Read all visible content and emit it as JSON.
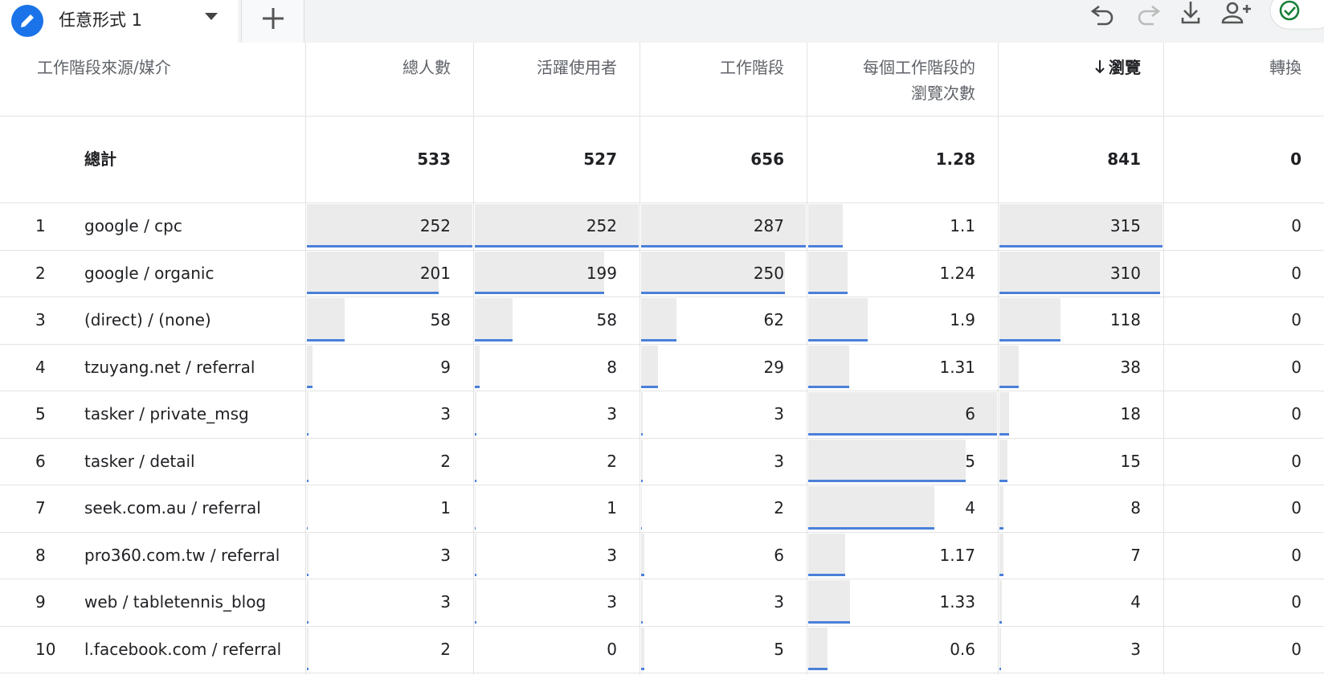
{
  "tab": {
    "title": "任意形式 1"
  },
  "table": {
    "columns": [
      "工作階段來源/媒介",
      "總人數",
      "活躍使用者",
      "工作階段",
      "每個工作階段的瀏覽次數",
      "瀏覽",
      "轉換"
    ],
    "total": {
      "label": "總計",
      "values": [
        533,
        527,
        656,
        1.28,
        841,
        0
      ]
    },
    "rows": [
      {
        "rank": 1,
        "source": "google / cpc",
        "values": [
          252,
          252,
          287,
          1.1,
          315,
          0
        ]
      },
      {
        "rank": 2,
        "source": "google / organic",
        "values": [
          201,
          199,
          250,
          1.24,
          310,
          0
        ]
      },
      {
        "rank": 3,
        "source": "(direct) / (none)",
        "values": [
          58,
          58,
          62,
          1.9,
          118,
          0
        ]
      },
      {
        "rank": 4,
        "source": "tzuyang.net / referral",
        "values": [
          9,
          8,
          29,
          1.31,
          38,
          0
        ]
      },
      {
        "rank": 5,
        "source": "tasker / private_msg",
        "values": [
          3,
          3,
          3,
          6,
          18,
          0
        ]
      },
      {
        "rank": 6,
        "source": "tasker / detail",
        "values": [
          2,
          2,
          3,
          5,
          15,
          0
        ]
      },
      {
        "rank": 7,
        "source": "seek.com.au / referral",
        "values": [
          1,
          1,
          2,
          4,
          8,
          0
        ]
      },
      {
        "rank": 8,
        "source": "pro360.com.tw / referral",
        "values": [
          3,
          3,
          6,
          1.17,
          7,
          0
        ]
      },
      {
        "rank": 9,
        "source": "web / tabletennis_blog",
        "values": [
          3,
          3,
          3,
          1.33,
          4,
          0
        ]
      },
      {
        "rank": 10,
        "source": "l.facebook.com / referral",
        "values": [
          2,
          0,
          5,
          0.6,
          3,
          0
        ]
      }
    ]
  }
}
